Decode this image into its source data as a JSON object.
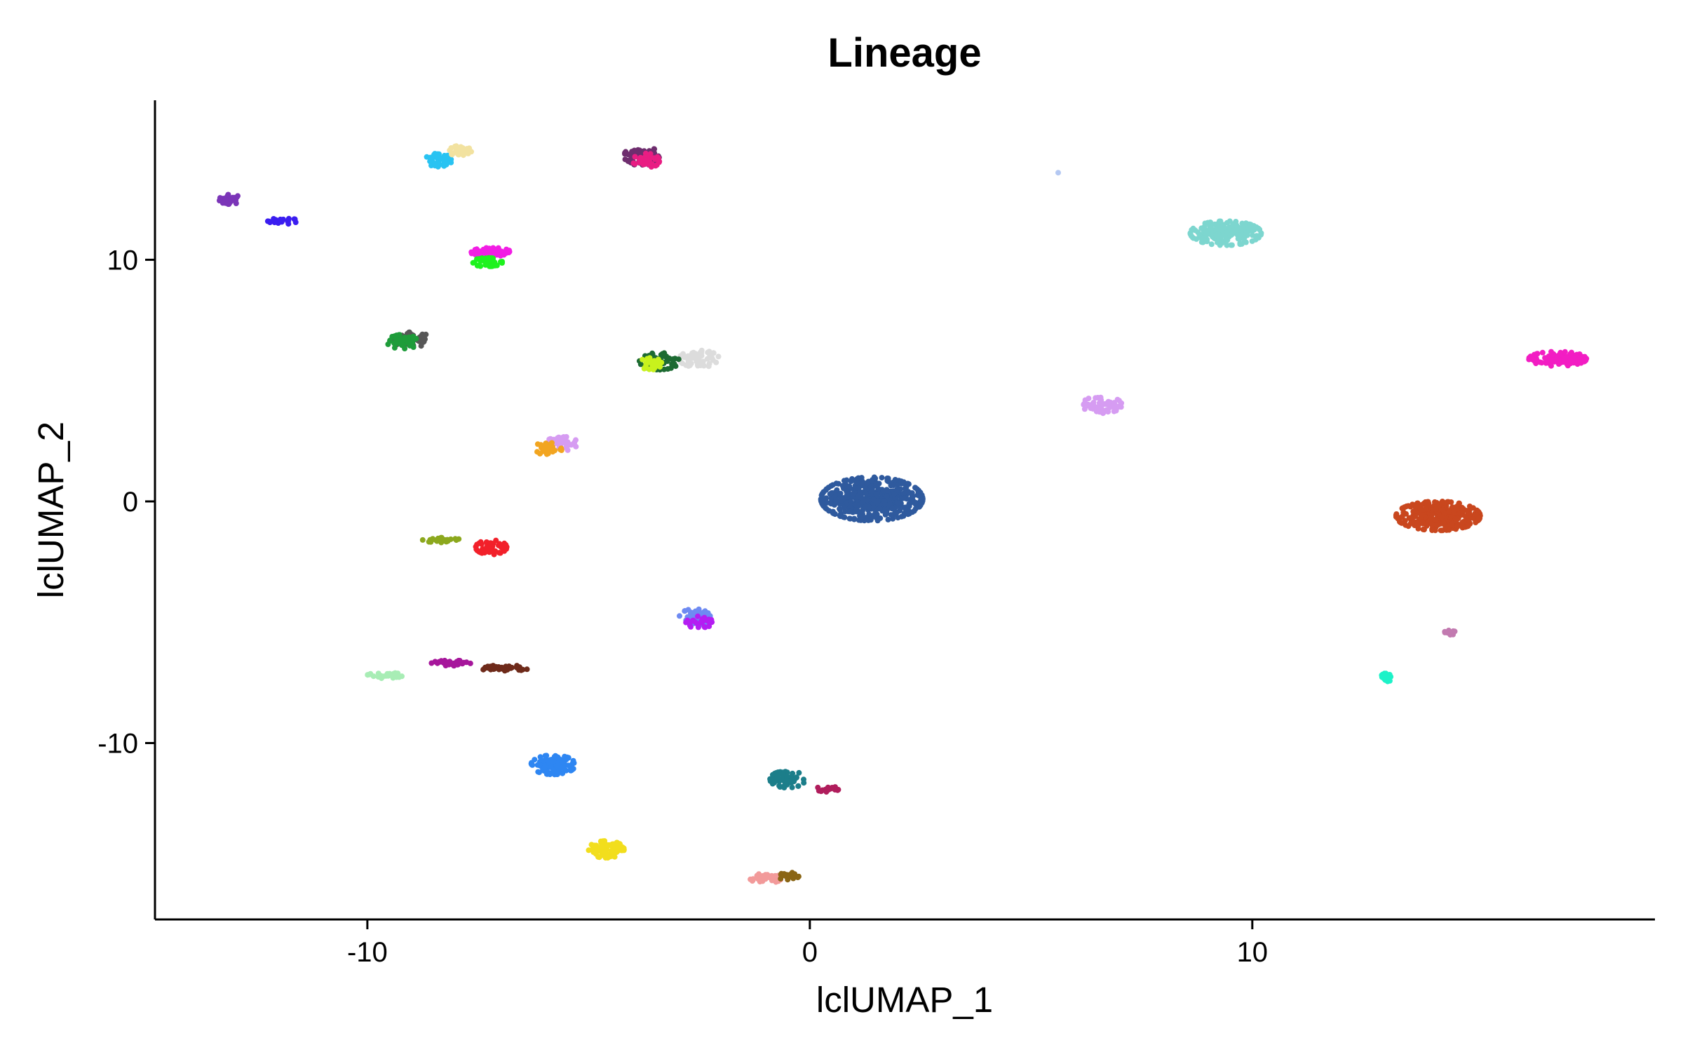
{
  "chart_data": {
    "type": "scatter",
    "title": "Lineage",
    "xlabel": "lclUMAP_1",
    "ylabel": "lclUMAP_2",
    "xlim": [
      -14.8,
      19.1
    ],
    "ylim": [
      -17.3,
      16.6
    ],
    "x_ticks": [
      -10,
      0,
      10
    ],
    "y_ticks": [
      -10,
      0,
      10
    ],
    "x_tick_labels": [
      "-10",
      "0",
      "10"
    ],
    "y_tick_labels": [
      "-10",
      "0",
      "10"
    ],
    "grid": false,
    "legend": "none",
    "clusters": [
      {
        "color": "#7B35B8",
        "x": -13.1,
        "y": 12.5,
        "sx": 0.25,
        "sy": 0.2,
        "n": 30
      },
      {
        "color": "#3A1DF0",
        "x": -11.9,
        "y": 11.6,
        "sx": 0.35,
        "sy": 0.12,
        "n": 22
      },
      {
        "color": "#29C3F2",
        "x": -8.4,
        "y": 14.1,
        "sx": 0.3,
        "sy": 0.3,
        "n": 40
      },
      {
        "color": "#F2E2A0",
        "x": -7.9,
        "y": 14.5,
        "sx": 0.25,
        "sy": 0.22,
        "n": 30
      },
      {
        "color": "#6E2D6E",
        "x": -3.8,
        "y": 14.3,
        "sx": 0.4,
        "sy": 0.4,
        "n": 70
      },
      {
        "color": "#E91D83",
        "x": -3.7,
        "y": 14.1,
        "sx": 0.3,
        "sy": 0.3,
        "n": 40
      },
      {
        "color": "#F21DE4",
        "x": -7.2,
        "y": 10.3,
        "sx": 0.45,
        "sy": 0.2,
        "n": 55
      },
      {
        "color": "#1EF21E",
        "x": -7.3,
        "y": 9.9,
        "sx": 0.35,
        "sy": 0.18,
        "n": 40
      },
      {
        "color": "#575757",
        "x": -9.0,
        "y": 6.7,
        "sx": 0.45,
        "sy": 0.3,
        "n": 60
      },
      {
        "color": "#1E9C3A",
        "x": -9.2,
        "y": 6.6,
        "sx": 0.35,
        "sy": 0.3,
        "n": 40
      },
      {
        "color": "#DCDCDC",
        "x": -2.5,
        "y": 5.9,
        "sx": 0.45,
        "sy": 0.35,
        "n": 60
      },
      {
        "color": "#1D6B32",
        "x": -3.4,
        "y": 5.8,
        "sx": 0.45,
        "sy": 0.35,
        "n": 60
      },
      {
        "color": "#C8F21D",
        "x": -3.6,
        "y": 5.7,
        "sx": 0.25,
        "sy": 0.25,
        "n": 25
      },
      {
        "color": "#D69CF2",
        "x": -5.6,
        "y": 2.4,
        "sx": 0.35,
        "sy": 0.3,
        "n": 40
      },
      {
        "color": "#F2A520",
        "x": -5.9,
        "y": 2.2,
        "sx": 0.3,
        "sy": 0.3,
        "n": 40
      },
      {
        "color": "#8CA81D",
        "x": -8.3,
        "y": -1.6,
        "sx": 0.45,
        "sy": 0.1,
        "n": 30
      },
      {
        "color": "#F2202A",
        "x": -7.2,
        "y": -1.9,
        "sx": 0.35,
        "sy": 0.3,
        "n": 55
      },
      {
        "color": "#6E8AF2",
        "x": -2.6,
        "y": -4.8,
        "sx": 0.35,
        "sy": 0.35,
        "n": 55
      },
      {
        "color": "#B41DF2",
        "x": -2.5,
        "y": -5.0,
        "sx": 0.3,
        "sy": 0.25,
        "n": 25
      },
      {
        "color": "#A8EDB5",
        "x": -9.6,
        "y": -7.2,
        "sx": 0.4,
        "sy": 0.12,
        "n": 30
      },
      {
        "color": "#A6169B",
        "x": -8.1,
        "y": -6.7,
        "sx": 0.45,
        "sy": 0.12,
        "n": 35
      },
      {
        "color": "#6E2A1A",
        "x": -6.9,
        "y": -6.9,
        "sx": 0.55,
        "sy": 0.12,
        "n": 40
      },
      {
        "color": "#2E86F2",
        "x": -5.8,
        "y": -10.9,
        "sx": 0.5,
        "sy": 0.4,
        "n": 100
      },
      {
        "color": "#1C7E8A",
        "x": -0.5,
        "y": -11.5,
        "sx": 0.4,
        "sy": 0.35,
        "n": 60
      },
      {
        "color": "#B01D5C",
        "x": 0.4,
        "y": -11.9,
        "sx": 0.25,
        "sy": 0.12,
        "n": 18
      },
      {
        "color": "#F2DE1D",
        "x": -4.6,
        "y": -14.4,
        "sx": 0.4,
        "sy": 0.35,
        "n": 80
      },
      {
        "color": "#F29A9A",
        "x": -1.0,
        "y": -15.6,
        "sx": 0.35,
        "sy": 0.2,
        "n": 40
      },
      {
        "color": "#8A6514",
        "x": -0.5,
        "y": -15.5,
        "sx": 0.25,
        "sy": 0.15,
        "n": 20
      },
      {
        "color": "#B4C8F2",
        "x": 5.6,
        "y": 13.6,
        "sx": 0.02,
        "sy": 0.02,
        "n": 1
      },
      {
        "color": "#7DD6CF",
        "x": 9.4,
        "y": 11.1,
        "sx": 0.8,
        "sy": 0.5,
        "n": 180
      },
      {
        "color": "#D69CF2",
        "x": 6.6,
        "y": 4.0,
        "sx": 0.45,
        "sy": 0.35,
        "n": 60
      },
      {
        "color": "#2F5A9E",
        "x": 1.4,
        "y": 0.1,
        "sx": 1.15,
        "sy": 0.9,
        "n": 480
      },
      {
        "color": "#C9471E",
        "x": 14.2,
        "y": -0.6,
        "sx": 0.95,
        "sy": 0.6,
        "n": 320
      },
      {
        "color": "#F21DC3",
        "x": 16.9,
        "y": 5.9,
        "sx": 0.65,
        "sy": 0.3,
        "n": 110
      },
      {
        "color": "#1DF2C8",
        "x": 13.0,
        "y": -7.3,
        "sx": 0.15,
        "sy": 0.18,
        "n": 16
      },
      {
        "color": "#C27AB0",
        "x": 14.5,
        "y": -5.4,
        "sx": 0.15,
        "sy": 0.12,
        "n": 12
      }
    ]
  }
}
